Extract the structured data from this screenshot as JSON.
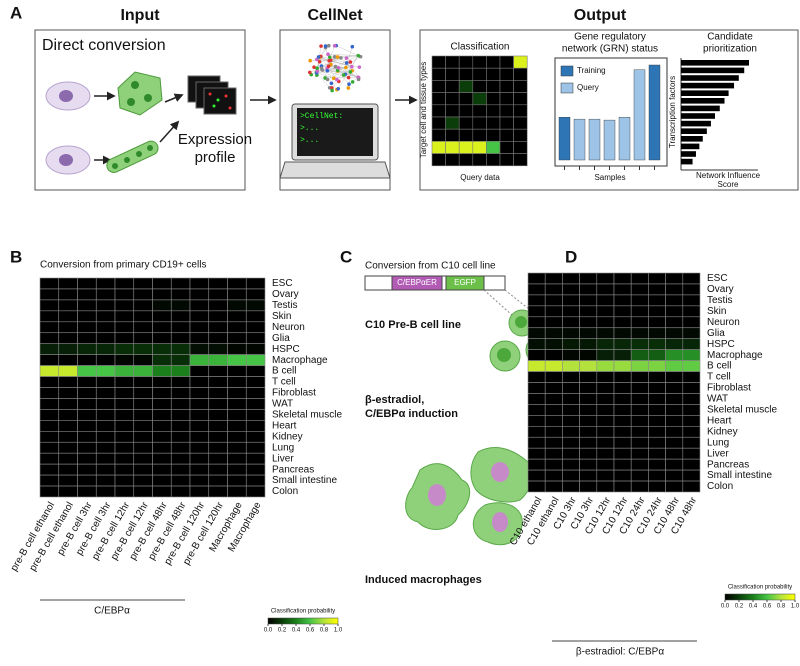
{
  "panel_a": {
    "label": "A",
    "input": {
      "title": "Input",
      "direct_conversion": "Direct conversion",
      "expression_profile": [
        "Expression",
        "profile"
      ]
    },
    "cellnet": {
      "title": "CellNet",
      "terminal": [
        ">CellNet:",
        ">...",
        ">..."
      ]
    },
    "output": {
      "title": "Output",
      "classification": {
        "title": "Classification",
        "y_label": "Target cell and tissue types",
        "x_label": "Query data",
        "values": [
          [
            0,
            0,
            0,
            0,
            0,
            0,
            0.9
          ],
          [
            0,
            0,
            0,
            0,
            0,
            0,
            0
          ],
          [
            0,
            0,
            0.2,
            0,
            0,
            0,
            0
          ],
          [
            0,
            0,
            0,
            0.2,
            0,
            0,
            0
          ],
          [
            0,
            0,
            0,
            0,
            0,
            0,
            0
          ],
          [
            0,
            0.2,
            0,
            0,
            0,
            0,
            0
          ],
          [
            0,
            0,
            0,
            0,
            0,
            0,
            0
          ],
          [
            0.9,
            0.9,
            0.9,
            0.9,
            0.6,
            0,
            0
          ],
          [
            0,
            0,
            0,
            0,
            0,
            0,
            0
          ]
        ]
      },
      "grn": {
        "title": [
          "Gene regulatory",
          "network (GRN) status"
        ],
        "x_label": "Samples",
        "series": [
          {
            "name": "Training",
            "color": "#2e75b6",
            "values": [
              0.45,
              null,
              null,
              null,
              null,
              null,
              1.0
            ]
          },
          {
            "name": "Query",
            "color": "#9dc3e6",
            "values": [
              null,
              0.43,
              0.43,
              0.42,
              0.45,
              0.95,
              null
            ]
          }
        ]
      },
      "candidates": {
        "title": [
          "Candidate",
          "prioritization"
        ],
        "y_label": "Transcription factors",
        "x_label": [
          "Network Influence",
          "Score"
        ],
        "values": [
          1.0,
          0.93,
          0.85,
          0.78,
          0.7,
          0.64,
          0.57,
          0.5,
          0.44,
          0.38,
          0.32,
          0.27,
          0.22,
          0.17
        ]
      }
    }
  },
  "panel_b": {
    "label": "B",
    "title": "Conversion from primary CD19+ cells",
    "rows": [
      "ESC",
      "Ovary",
      "Testis",
      "Skin",
      "Neuron",
      "Glia",
      "HSPC",
      "Macrophage",
      "B cell",
      "T cell",
      "Fibroblast",
      "WAT",
      "Skeletal muscle",
      "Heart",
      "Kidney",
      "Lung",
      "Liver",
      "Pancreas",
      "Small intestine",
      "Colon"
    ],
    "columns": [
      "pre-B cell ethanol",
      "pre-B cell ethanol",
      "pre-B cell 3hr",
      "pre-B cell 3hr",
      "pre-B cell 12hr",
      "pre-B cell 12hr",
      "pre-B cell 48hr",
      "pre-B cell 48hr",
      "pre-B cell 120hr",
      "pre-B cell 120hr",
      "Macrophage",
      "Macrophage"
    ],
    "values": [
      [
        0,
        0,
        0,
        0,
        0,
        0,
        0,
        0,
        0,
        0,
        0,
        0
      ],
      [
        0,
        0,
        0,
        0,
        0,
        0,
        0,
        0,
        0,
        0,
        0,
        0
      ],
      [
        0,
        0,
        0,
        0,
        0,
        0,
        0.03,
        0.03,
        0,
        0,
        0.03,
        0.03
      ],
      [
        0,
        0,
        0,
        0,
        0,
        0,
        0,
        0,
        0,
        0,
        0,
        0
      ],
      [
        0,
        0,
        0,
        0,
        0,
        0,
        0,
        0,
        0,
        0,
        0,
        0
      ],
      [
        0,
        0,
        0,
        0,
        0,
        0,
        0,
        0,
        0,
        0,
        0,
        0
      ],
      [
        0.1,
        0.1,
        0.12,
        0.12,
        0.15,
        0.15,
        0.15,
        0.15,
        0.05,
        0.05,
        0.02,
        0.02
      ],
      [
        0,
        0,
        0,
        0,
        0.02,
        0.02,
        0.15,
        0.15,
        0.55,
        0.55,
        0.6,
        0.6
      ],
      [
        0.85,
        0.85,
        0.6,
        0.6,
        0.55,
        0.55,
        0.4,
        0.4,
        0,
        0,
        0,
        0
      ],
      [
        0,
        0,
        0,
        0,
        0,
        0,
        0,
        0,
        0,
        0,
        0,
        0
      ],
      [
        0,
        0,
        0,
        0,
        0,
        0,
        0,
        0,
        0,
        0,
        0,
        0
      ],
      [
        0,
        0,
        0,
        0,
        0,
        0,
        0,
        0,
        0,
        0,
        0,
        0
      ],
      [
        0,
        0,
        0,
        0,
        0,
        0,
        0,
        0,
        0,
        0,
        0,
        0
      ],
      [
        0,
        0,
        0,
        0,
        0,
        0,
        0,
        0,
        0,
        0,
        0,
        0
      ],
      [
        0,
        0,
        0,
        0,
        0,
        0,
        0,
        0,
        0,
        0,
        0,
        0
      ],
      [
        0,
        0,
        0,
        0,
        0,
        0,
        0,
        0,
        0,
        0,
        0,
        0
      ],
      [
        0,
        0,
        0,
        0,
        0,
        0,
        0,
        0,
        0,
        0,
        0,
        0
      ],
      [
        0,
        0,
        0,
        0,
        0,
        0,
        0,
        0,
        0,
        0,
        0,
        0
      ],
      [
        0,
        0,
        0,
        0,
        0,
        0,
        0,
        0,
        0,
        0,
        0,
        0
      ],
      [
        0,
        0,
        0,
        0,
        0,
        0,
        0,
        0,
        0,
        0,
        0,
        0
      ]
    ],
    "group_label": "C/EBPα",
    "legend": {
      "title": "Classification probability",
      "ticks": [
        {
          "value": 0,
          "label": "0.0"
        },
        0.2,
        0.4,
        0.6,
        0.8,
        {
          "value": 1,
          "label": "1.0"
        }
      ]
    }
  },
  "panel_c": {
    "label": "C",
    "title": "Conversion from C10 cell line",
    "construct": [
      "C/EBPαER",
      "EGFP"
    ],
    "cell_line": "C10 Pre-B cell line",
    "treatment": [
      "β-estradiol,",
      "C/EBPα induction"
    ],
    "result": "Induced macrophages"
  },
  "panel_d": {
    "label": "D",
    "rows": [
      "ESC",
      "Ovary",
      "Testis",
      "Skin",
      "Neuron",
      "Glia",
      "HSPC",
      "Macrophage",
      "B cell",
      "T cell",
      "Fibroblast",
      "WAT",
      "Skeletal muscle",
      "Heart",
      "Kidney",
      "Lung",
      "Liver",
      "Pancreas",
      "Small intestine",
      "Colon"
    ],
    "columns": [
      "C10 ethanol",
      "C10 ethanol",
      "C10 3hr",
      "C10 3hr",
      "C10 12hr",
      "C10 12hr",
      "C10 24hr",
      "C10 24hr",
      "C10 48hr",
      "C10 48hr"
    ],
    "values": [
      [
        0,
        0,
        0,
        0,
        0,
        0,
        0,
        0,
        0,
        0
      ],
      [
        0,
        0,
        0,
        0,
        0,
        0,
        0,
        0,
        0,
        0
      ],
      [
        0,
        0,
        0,
        0,
        0,
        0,
        0,
        0,
        0,
        0
      ],
      [
        0,
        0,
        0,
        0,
        0,
        0,
        0,
        0,
        0,
        0
      ],
      [
        0,
        0,
        0,
        0,
        0,
        0,
        0,
        0,
        0,
        0
      ],
      [
        0.03,
        0.03,
        0.03,
        0.03,
        0.03,
        0.03,
        0.03,
        0.03,
        0.03,
        0.03
      ],
      [
        0.05,
        0.05,
        0.08,
        0.08,
        0.12,
        0.12,
        0.15,
        0.15,
        0.12,
        0.12
      ],
      [
        0,
        0,
        0.02,
        0.02,
        0.1,
        0.1,
        0.3,
        0.3,
        0.45,
        0.45
      ],
      [
        0.85,
        0.85,
        0.8,
        0.8,
        0.75,
        0.75,
        0.7,
        0.7,
        0.65,
        0.65
      ],
      [
        0,
        0,
        0,
        0,
        0,
        0,
        0,
        0,
        0,
        0
      ],
      [
        0,
        0,
        0,
        0,
        0,
        0,
        0,
        0,
        0,
        0
      ],
      [
        0,
        0,
        0,
        0,
        0,
        0,
        0,
        0,
        0,
        0
      ],
      [
        0,
        0,
        0,
        0,
        0,
        0,
        0,
        0,
        0,
        0
      ],
      [
        0,
        0,
        0,
        0,
        0,
        0,
        0,
        0,
        0,
        0
      ],
      [
        0,
        0,
        0,
        0,
        0,
        0,
        0,
        0,
        0,
        0
      ],
      [
        0,
        0,
        0,
        0,
        0,
        0,
        0,
        0,
        0,
        0
      ],
      [
        0,
        0,
        0,
        0,
        0,
        0,
        0,
        0,
        0,
        0
      ],
      [
        0,
        0,
        0,
        0,
        0,
        0,
        0,
        0,
        0,
        0
      ],
      [
        0,
        0,
        0,
        0,
        0,
        0,
        0,
        0,
        0,
        0
      ],
      [
        0,
        0,
        0,
        0,
        0,
        0,
        0,
        0,
        0,
        0
      ]
    ],
    "group_label": "β-estradiol: C/EBPα",
    "legend": {
      "title": "Classification probability",
      "ticks": [
        {
          "value": 0,
          "label": "0.0"
        },
        0.2,
        0.4,
        0.6,
        0.8,
        {
          "value": 1,
          "label": "1.0"
        }
      ]
    }
  }
}
